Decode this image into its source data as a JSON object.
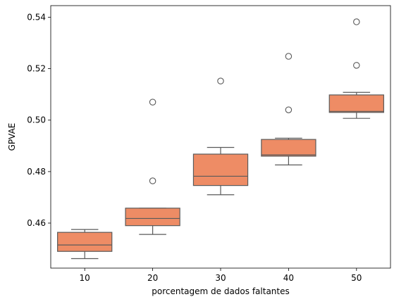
{
  "chart_data": {
    "type": "box",
    "xlabel": "porcentagem de dados faltantes",
    "ylabel": "GPVAE",
    "categories": [
      "10",
      "20",
      "30",
      "40",
      "50"
    ],
    "ylim": [
      0.4425,
      0.5445
    ],
    "yticks": [
      0.46,
      0.48,
      0.5,
      0.52,
      0.54
    ],
    "yticklabels": [
      "0.46",
      "0.48",
      "0.50",
      "0.52",
      "0.54"
    ],
    "box_color": "#ee8c65",
    "edge_color": "#5a5a5a",
    "grid": false,
    "boxes": [
      {
        "category": "10",
        "whislo": 0.4462,
        "q1": 0.449,
        "med": 0.4515,
        "q3": 0.4564,
        "whishi": 0.4575,
        "fliers": []
      },
      {
        "category": "20",
        "whislo": 0.4556,
        "q1": 0.459,
        "med": 0.4618,
        "q3": 0.4658,
        "whishi": 0.4658,
        "fliers": [
          0.507,
          0.4764
        ]
      },
      {
        "category": "30",
        "whislo": 0.471,
        "q1": 0.4746,
        "med": 0.4782,
        "q3": 0.4868,
        "whishi": 0.4894,
        "fliers": [
          0.5152
        ]
      },
      {
        "category": "40",
        "whislo": 0.4826,
        "q1": 0.486,
        "med": 0.4865,
        "q3": 0.4925,
        "whishi": 0.493,
        "fliers": [
          0.5248,
          0.504
        ]
      },
      {
        "category": "50",
        "whislo": 0.5007,
        "q1": 0.503,
        "med": 0.5034,
        "q3": 0.5098,
        "whishi": 0.5108,
        "fliers": [
          0.5382,
          0.5213
        ]
      }
    ]
  }
}
